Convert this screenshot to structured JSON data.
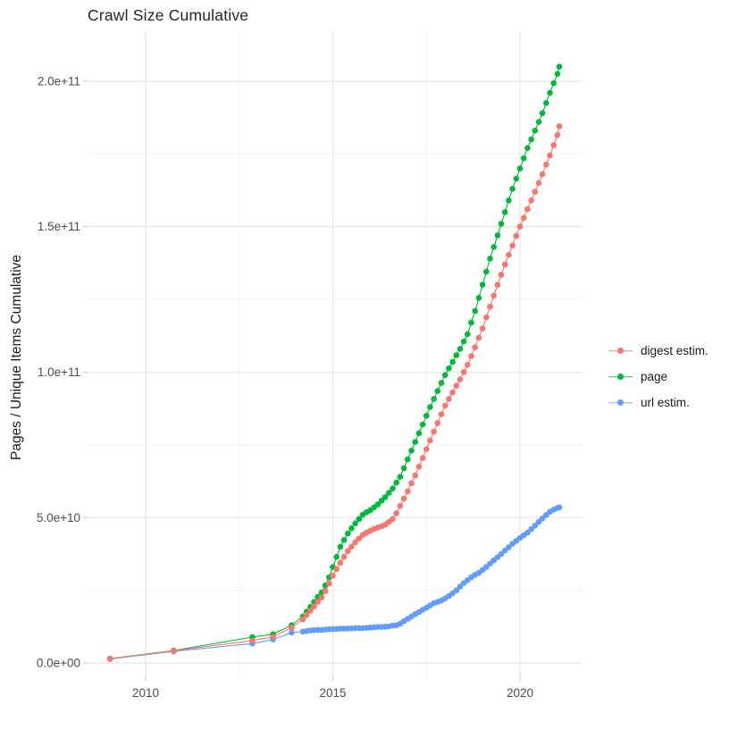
{
  "title": "Crawl Size Cumulative",
  "chart_data": {
    "type": "scatter-line",
    "title": "Crawl Size Cumulative",
    "xlabel": "",
    "ylabel": "Pages / Unique Items Cumulative",
    "value_unit": "billions of pages (1e9)",
    "x_range_years": [
      2009.05,
      2021.05
    ],
    "ylim": [
      0,
      215
    ],
    "grid": "major+minor",
    "legend_position": "right",
    "x_ticks": [
      {
        "label": "2010",
        "value": 2010
      },
      {
        "label": "2015",
        "value": 2015
      },
      {
        "label": "2020",
        "value": 2020
      }
    ],
    "x_minor": [
      2012.5,
      2017.5
    ],
    "y_ticks": [
      {
        "label": "0.0e+00",
        "value": 0
      },
      {
        "label": "5.0e+10",
        "value": 50
      },
      {
        "label": "1.0e+11",
        "value": 100
      },
      {
        "label": "1.5e+11",
        "value": 150
      },
      {
        "label": "2.0e+11",
        "value": 200
      }
    ],
    "y_minor": [
      25,
      75,
      125,
      175
    ],
    "series": [
      {
        "name": "digest estim.",
        "color": "#F8766D",
        "points": [
          [
            2009.05,
            1.4
          ],
          [
            2010.75,
            4.2
          ],
          [
            2012.85,
            7.7
          ],
          [
            2013.4,
            9.0
          ],
          [
            2013.9,
            12.2
          ],
          [
            2014.2,
            15
          ],
          [
            2014.3,
            16.5
          ],
          [
            2014.4,
            18
          ],
          [
            2014.5,
            19.5
          ],
          [
            2014.6,
            21
          ],
          [
            2014.7,
            22.5
          ],
          [
            2014.8,
            24.7
          ],
          [
            2014.9,
            27.3
          ],
          [
            2015.0,
            30
          ],
          [
            2015.1,
            32.3
          ],
          [
            2015.2,
            34.5
          ],
          [
            2015.3,
            36.5
          ],
          [
            2015.4,
            38.5
          ],
          [
            2015.5,
            40
          ],
          [
            2015.6,
            41.5
          ],
          [
            2015.7,
            42.8
          ],
          [
            2015.8,
            44
          ],
          [
            2015.9,
            44.8
          ],
          [
            2016.0,
            45.5
          ],
          [
            2016.1,
            46.1
          ],
          [
            2016.2,
            46.6
          ],
          [
            2016.3,
            47
          ],
          [
            2016.4,
            47.5
          ],
          [
            2016.5,
            48.5
          ],
          [
            2016.6,
            49.5
          ],
          [
            2016.7,
            51.5
          ],
          [
            2016.8,
            54
          ],
          [
            2016.9,
            56.5
          ],
          [
            2017.0,
            59
          ],
          [
            2017.1,
            61.8
          ],
          [
            2017.2,
            64.5
          ],
          [
            2017.3,
            67.5
          ],
          [
            2017.4,
            70.5
          ],
          [
            2017.5,
            73.5
          ],
          [
            2017.6,
            76.5
          ],
          [
            2017.7,
            79.5
          ],
          [
            2017.8,
            82.5
          ],
          [
            2017.9,
            85.5
          ],
          [
            2018.0,
            88.5
          ],
          [
            2018.1,
            90.8
          ],
          [
            2018.2,
            93
          ],
          [
            2018.3,
            95.3
          ],
          [
            2018.4,
            97.5
          ],
          [
            2018.5,
            100
          ],
          [
            2018.6,
            102.5
          ],
          [
            2018.7,
            105.5
          ],
          [
            2018.8,
            108.5
          ],
          [
            2018.9,
            111.8
          ],
          [
            2019.0,
            115
          ],
          [
            2019.1,
            118.8
          ],
          [
            2019.2,
            122.5
          ],
          [
            2019.3,
            126.3
          ],
          [
            2019.4,
            130
          ],
          [
            2019.5,
            133.5
          ],
          [
            2019.6,
            137
          ],
          [
            2019.7,
            140.3
          ],
          [
            2019.8,
            143.5
          ],
          [
            2019.9,
            146.8
          ],
          [
            2020.0,
            150
          ],
          [
            2020.1,
            153
          ],
          [
            2020.2,
            156
          ],
          [
            2020.3,
            159
          ],
          [
            2020.4,
            162
          ],
          [
            2020.5,
            165
          ],
          [
            2020.6,
            168
          ],
          [
            2020.7,
            171.3
          ],
          [
            2020.8,
            174.5
          ],
          [
            2020.9,
            178
          ],
          [
            2021.0,
            181.5
          ],
          [
            2021.05,
            184.5
          ]
        ]
      },
      {
        "name": "page",
        "color": "#00BA38",
        "points": [
          [
            2009.05,
            1.5
          ],
          [
            2010.75,
            4.3
          ],
          [
            2012.85,
            8.9
          ],
          [
            2013.4,
            9.9
          ],
          [
            2013.9,
            13
          ],
          [
            2014.2,
            16
          ],
          [
            2014.3,
            17.7
          ],
          [
            2014.4,
            19.3
          ],
          [
            2014.5,
            21
          ],
          [
            2014.6,
            22.7
          ],
          [
            2014.7,
            24.3
          ],
          [
            2014.8,
            26.7
          ],
          [
            2014.9,
            29.5
          ],
          [
            2015.0,
            33
          ],
          [
            2015.1,
            36.5
          ],
          [
            2015.2,
            40
          ],
          [
            2015.3,
            42.3
          ],
          [
            2015.4,
            44.5
          ],
          [
            2015.5,
            46.3
          ],
          [
            2015.6,
            48
          ],
          [
            2015.7,
            49.5
          ],
          [
            2015.8,
            51
          ],
          [
            2015.9,
            51.8
          ],
          [
            2016.0,
            52.5
          ],
          [
            2016.1,
            53.5
          ],
          [
            2016.2,
            54.5
          ],
          [
            2016.3,
            55.8
          ],
          [
            2016.4,
            57
          ],
          [
            2016.5,
            58.5
          ],
          [
            2016.6,
            60
          ],
          [
            2016.7,
            62
          ],
          [
            2016.8,
            64
          ],
          [
            2016.9,
            67
          ],
          [
            2017.0,
            70
          ],
          [
            2017.1,
            73
          ],
          [
            2017.2,
            76
          ],
          [
            2017.3,
            79
          ],
          [
            2017.4,
            82
          ],
          [
            2017.5,
            85
          ],
          [
            2017.6,
            88
          ],
          [
            2017.7,
            90.8
          ],
          [
            2017.8,
            93.5
          ],
          [
            2017.9,
            96.3
          ],
          [
            2018.0,
            99
          ],
          [
            2018.1,
            101.3
          ],
          [
            2018.2,
            103.5
          ],
          [
            2018.3,
            105.8
          ],
          [
            2018.4,
            108
          ],
          [
            2018.5,
            110.5
          ],
          [
            2018.6,
            113
          ],
          [
            2018.7,
            117
          ],
          [
            2018.8,
            121
          ],
          [
            2018.9,
            125.5
          ],
          [
            2019.0,
            130
          ],
          [
            2019.1,
            134.5
          ],
          [
            2019.2,
            139
          ],
          [
            2019.3,
            143
          ],
          [
            2019.4,
            147
          ],
          [
            2019.5,
            151
          ],
          [
            2019.6,
            155
          ],
          [
            2019.7,
            159
          ],
          [
            2019.8,
            163
          ],
          [
            2019.9,
            166.5
          ],
          [
            2020.0,
            170
          ],
          [
            2020.1,
            173.5
          ],
          [
            2020.2,
            177
          ],
          [
            2020.3,
            180
          ],
          [
            2020.4,
            183
          ],
          [
            2020.5,
            186
          ],
          [
            2020.6,
            189
          ],
          [
            2020.7,
            192.5
          ],
          [
            2020.8,
            196
          ],
          [
            2020.9,
            199.3
          ],
          [
            2021.0,
            202.5
          ],
          [
            2021.05,
            205
          ]
        ]
      },
      {
        "name": "url estim.",
        "color": "#619CFF",
        "points": [
          [
            2009.05,
            1.4
          ],
          [
            2010.75,
            4.0
          ],
          [
            2012.85,
            6.7
          ],
          [
            2013.4,
            8.1
          ],
          [
            2013.9,
            10.5
          ],
          [
            2014.2,
            10.8
          ],
          [
            2014.3,
            11
          ],
          [
            2014.4,
            11.2
          ],
          [
            2014.5,
            11.3
          ],
          [
            2014.6,
            11.4
          ],
          [
            2014.7,
            11.4
          ],
          [
            2014.8,
            11.5
          ],
          [
            2014.9,
            11.6
          ],
          [
            2015.0,
            11.7
          ],
          [
            2015.1,
            11.7
          ],
          [
            2015.2,
            11.8
          ],
          [
            2015.3,
            11.8
          ],
          [
            2015.4,
            11.9
          ],
          [
            2015.5,
            11.9
          ],
          [
            2015.6,
            12
          ],
          [
            2015.7,
            12
          ],
          [
            2015.8,
            12
          ],
          [
            2015.9,
            12.1
          ],
          [
            2016.0,
            12.2
          ],
          [
            2016.1,
            12.3
          ],
          [
            2016.2,
            12.4
          ],
          [
            2016.3,
            12.4
          ],
          [
            2016.4,
            12.5
          ],
          [
            2016.5,
            12.6
          ],
          [
            2016.6,
            12.9
          ],
          [
            2016.7,
            13
          ],
          [
            2016.8,
            13.5
          ],
          [
            2016.9,
            14.4
          ],
          [
            2017.0,
            15.2
          ],
          [
            2017.1,
            16
          ],
          [
            2017.2,
            16.8
          ],
          [
            2017.3,
            17.5
          ],
          [
            2017.4,
            18.3
          ],
          [
            2017.5,
            19
          ],
          [
            2017.6,
            19.8
          ],
          [
            2017.7,
            20.6
          ],
          [
            2017.8,
            21
          ],
          [
            2017.9,
            21.5
          ],
          [
            2018.0,
            22.2
          ],
          [
            2018.1,
            23
          ],
          [
            2018.2,
            24
          ],
          [
            2018.3,
            25
          ],
          [
            2018.4,
            26.3
          ],
          [
            2018.5,
            27.5
          ],
          [
            2018.6,
            28.5
          ],
          [
            2018.7,
            29.5
          ],
          [
            2018.8,
            30.3
          ],
          [
            2018.9,
            31
          ],
          [
            2019.0,
            32
          ],
          [
            2019.1,
            33
          ],
          [
            2019.2,
            34.2
          ],
          [
            2019.3,
            35.3
          ],
          [
            2019.4,
            36.4
          ],
          [
            2019.5,
            37.5
          ],
          [
            2019.6,
            38.7
          ],
          [
            2019.7,
            39.8
          ],
          [
            2019.8,
            41
          ],
          [
            2019.9,
            42
          ],
          [
            2020.0,
            43
          ],
          [
            2020.1,
            43.9
          ],
          [
            2020.2,
            44.8
          ],
          [
            2020.3,
            46
          ],
          [
            2020.4,
            47.2
          ],
          [
            2020.5,
            48.5
          ],
          [
            2020.6,
            49.7
          ],
          [
            2020.7,
            50.9
          ],
          [
            2020.8,
            52
          ],
          [
            2020.9,
            52.7
          ],
          [
            2021.0,
            53.3
          ],
          [
            2021.05,
            53.5
          ]
        ]
      }
    ]
  },
  "legend": {
    "items": [
      {
        "label": "digest estim.",
        "color": "#F8766D"
      },
      {
        "label": "page",
        "color": "#00BA38"
      },
      {
        "label": "url estim.",
        "color": "#619CFF"
      }
    ]
  },
  "style": {
    "grid_major_color": "#E6E6E6",
    "grid_minor_color": "#F1F1F1",
    "tick_mark_color": "#C8C8C8",
    "tick_label_color": "#4D4D4D"
  }
}
